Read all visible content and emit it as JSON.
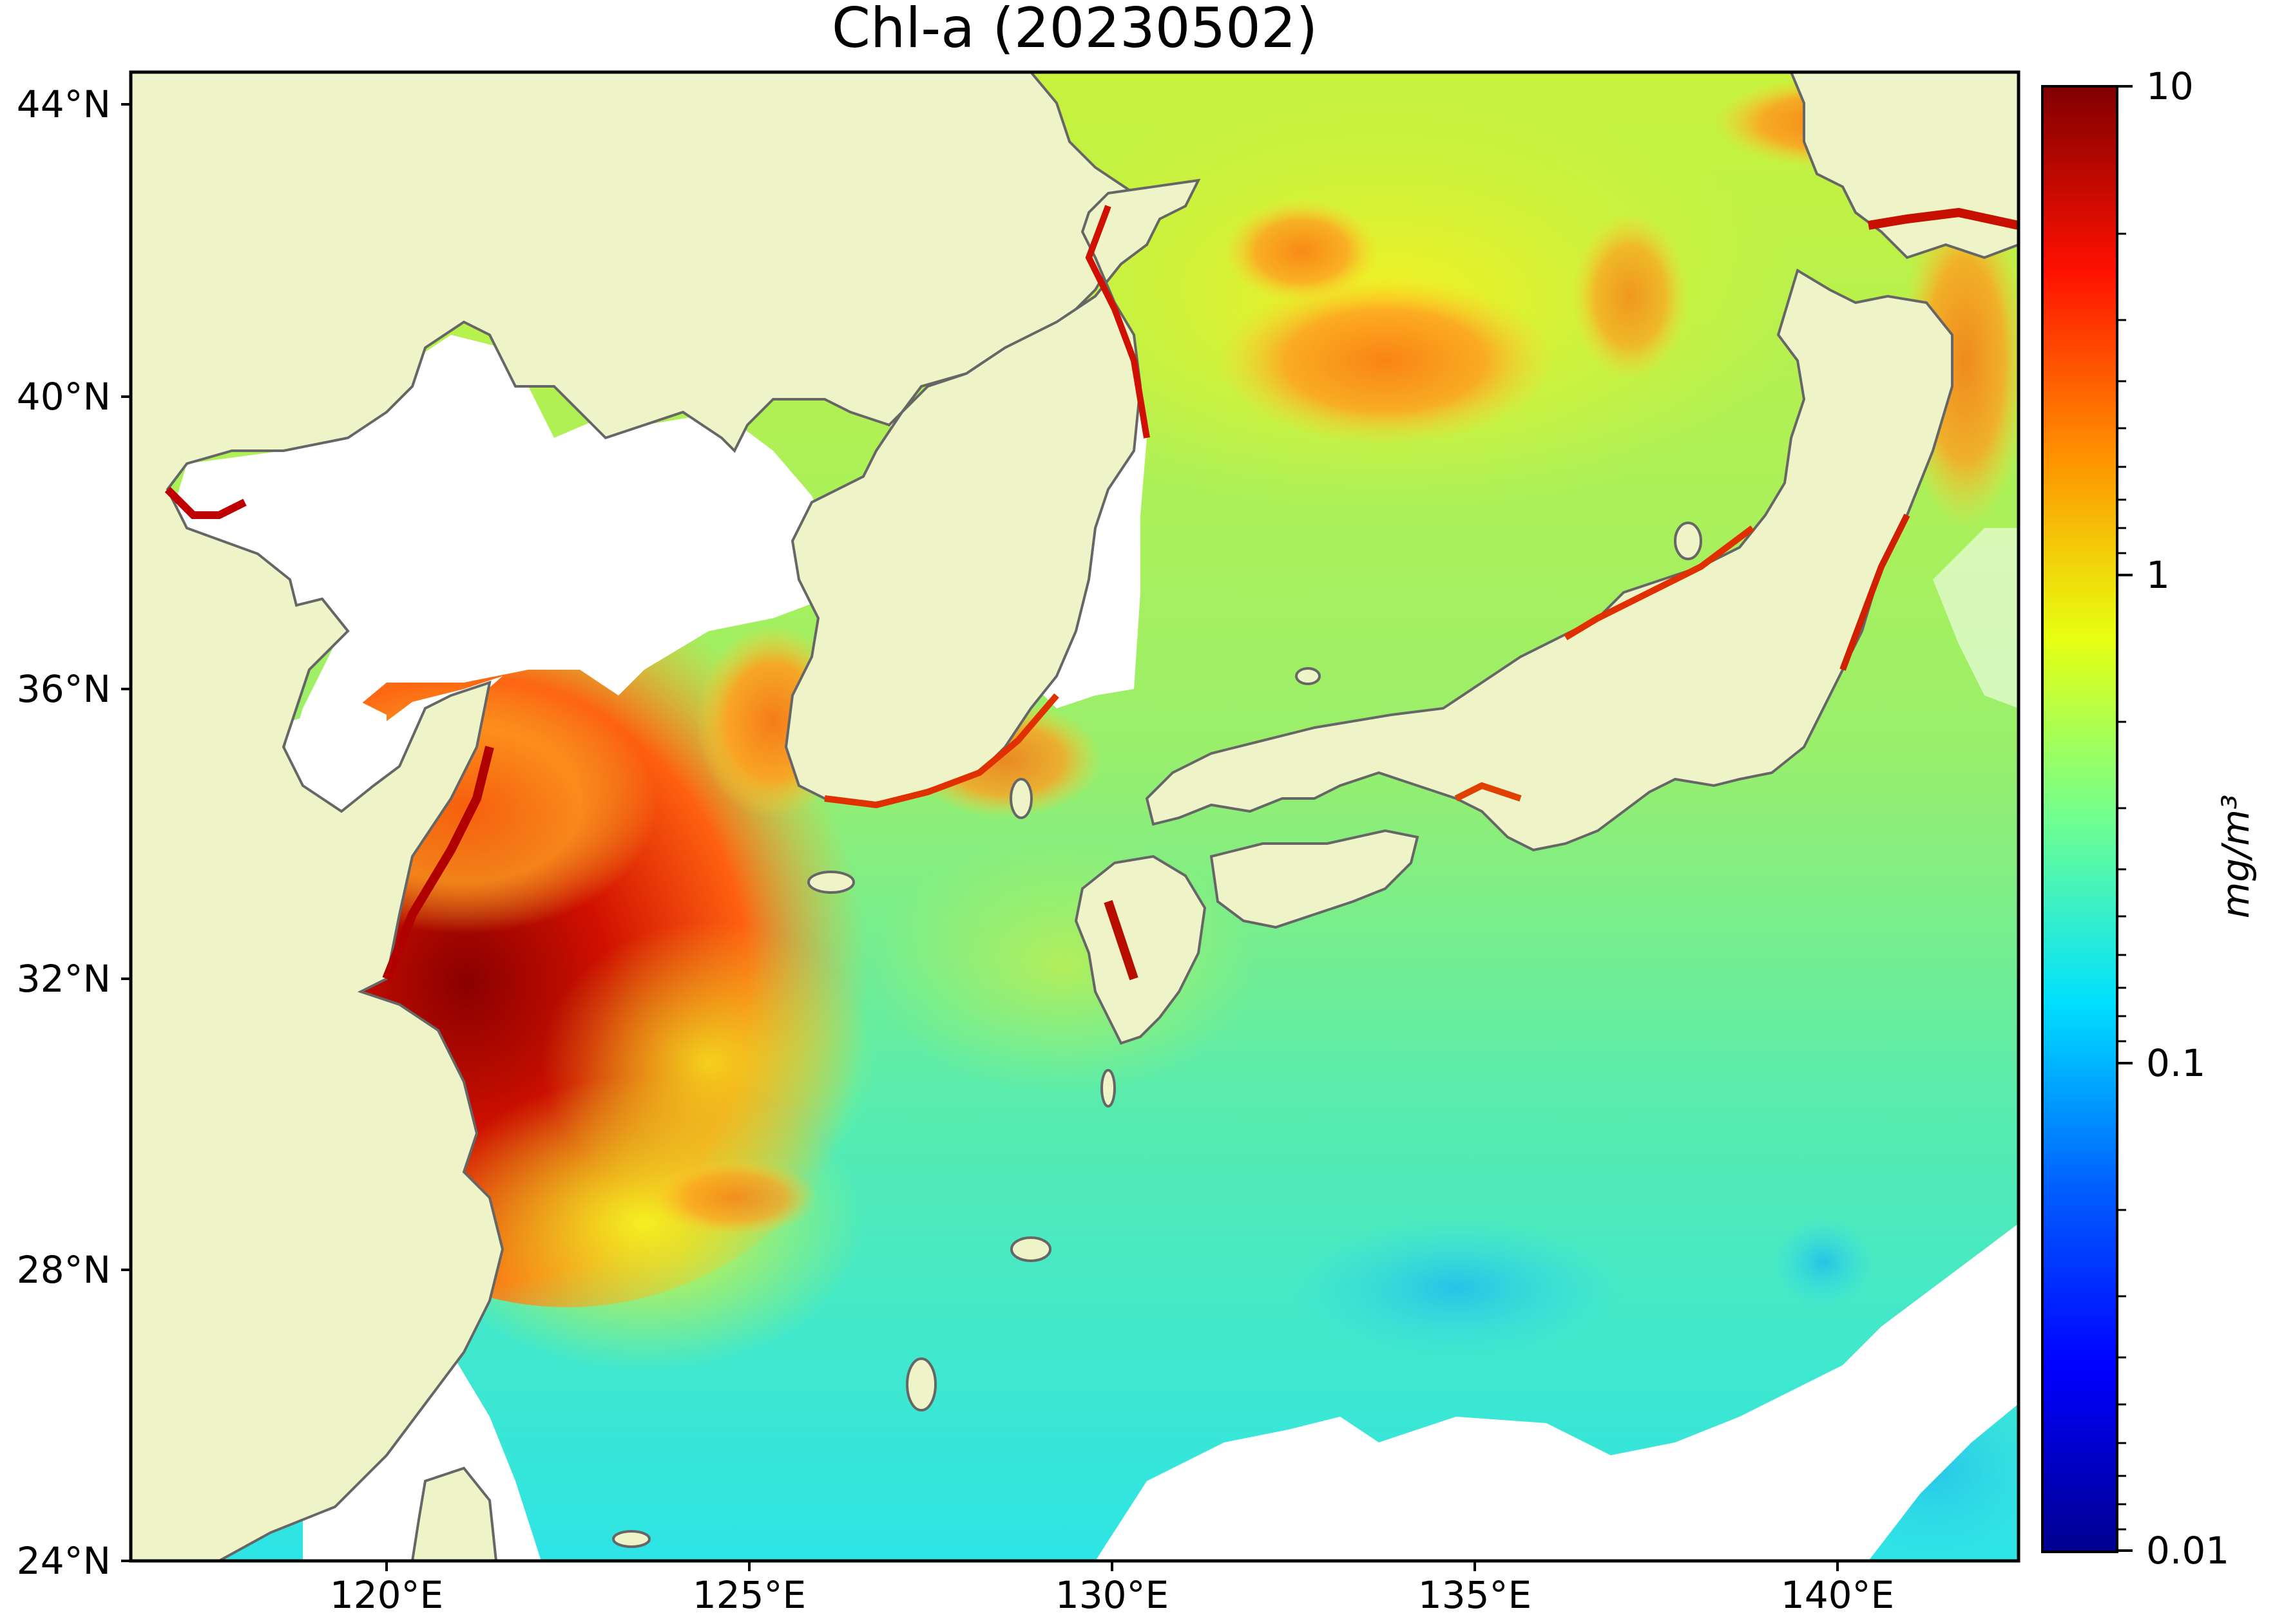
{
  "title": "Chl-a (20230502)",
  "latitude_ticks": [
    "44°N",
    "40°N",
    "36°N",
    "32°N",
    "28°N",
    "24°N"
  ],
  "longitude_ticks": [
    "120°E",
    "125°E",
    "130°E",
    "135°E",
    "140°E"
  ],
  "colorbar": {
    "scale": "log",
    "min": 0.01,
    "max": 10,
    "tick_labels": [
      "10",
      "1",
      "0.1",
      "0.01"
    ],
    "unit_label": "mg/m³",
    "colormap": [
      "#00008f",
      "#0000ff",
      "#0080ff",
      "#00ffff",
      "#80ff80",
      "#ffff00",
      "#ff8000",
      "#ff0000",
      "#800000"
    ]
  },
  "colors": {
    "land": "#eef3c8",
    "no_data": "#ffffff",
    "coastline": "#666666",
    "low_chl_open_ocean": "#2de8e0",
    "mid_chl": "#b8f040",
    "high_chl": "#ff7a10",
    "very_high_chl": "#b00000"
  }
}
